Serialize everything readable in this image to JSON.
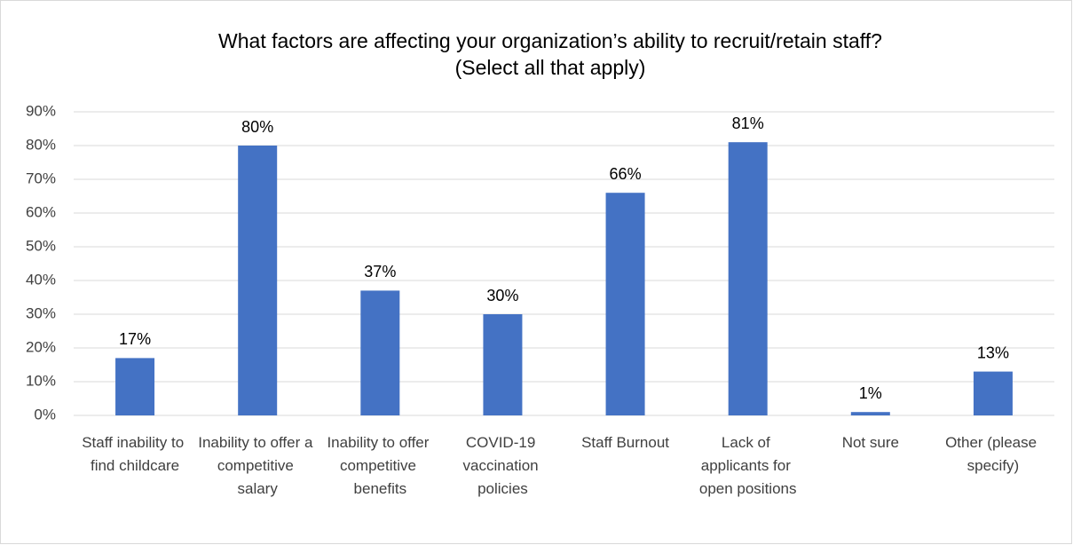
{
  "chart_data": {
    "type": "bar",
    "title": [
      "What factors are affecting your organization’s ability to recruit/retain staff?",
      "(Select all that apply)"
    ],
    "categories": [
      "Staff inability to find childcare",
      "Inability to offer a competitive salary",
      "Inability to offer competitive benefits",
      "COVID-19 vaccination policies",
      "Staff Burnout",
      "Lack of applicants for open positions",
      "Not sure",
      "Other (please specify)"
    ],
    "values": [
      17,
      80,
      37,
      30,
      66,
      81,
      1,
      13
    ],
    "value_labels": [
      "17%",
      "80%",
      "37%",
      "30%",
      "66%",
      "81%",
      "1%",
      "13%"
    ],
    "color": "#4472c4",
    "ylim": [
      0,
      90
    ],
    "yticks": [
      {
        "value": 0,
        "label": "0%"
      },
      {
        "value": 10,
        "label": "10%"
      },
      {
        "value": 20,
        "label": "20%"
      },
      {
        "value": 30,
        "label": "30%"
      },
      {
        "value": 40,
        "label": "40%"
      },
      {
        "value": 50,
        "label": "50%"
      },
      {
        "value": 60,
        "label": "60%"
      },
      {
        "value": 70,
        "label": "70%"
      },
      {
        "value": 80,
        "label": "80%"
      },
      {
        "value": 90,
        "label": "90%"
      }
    ],
    "grid": true
  }
}
